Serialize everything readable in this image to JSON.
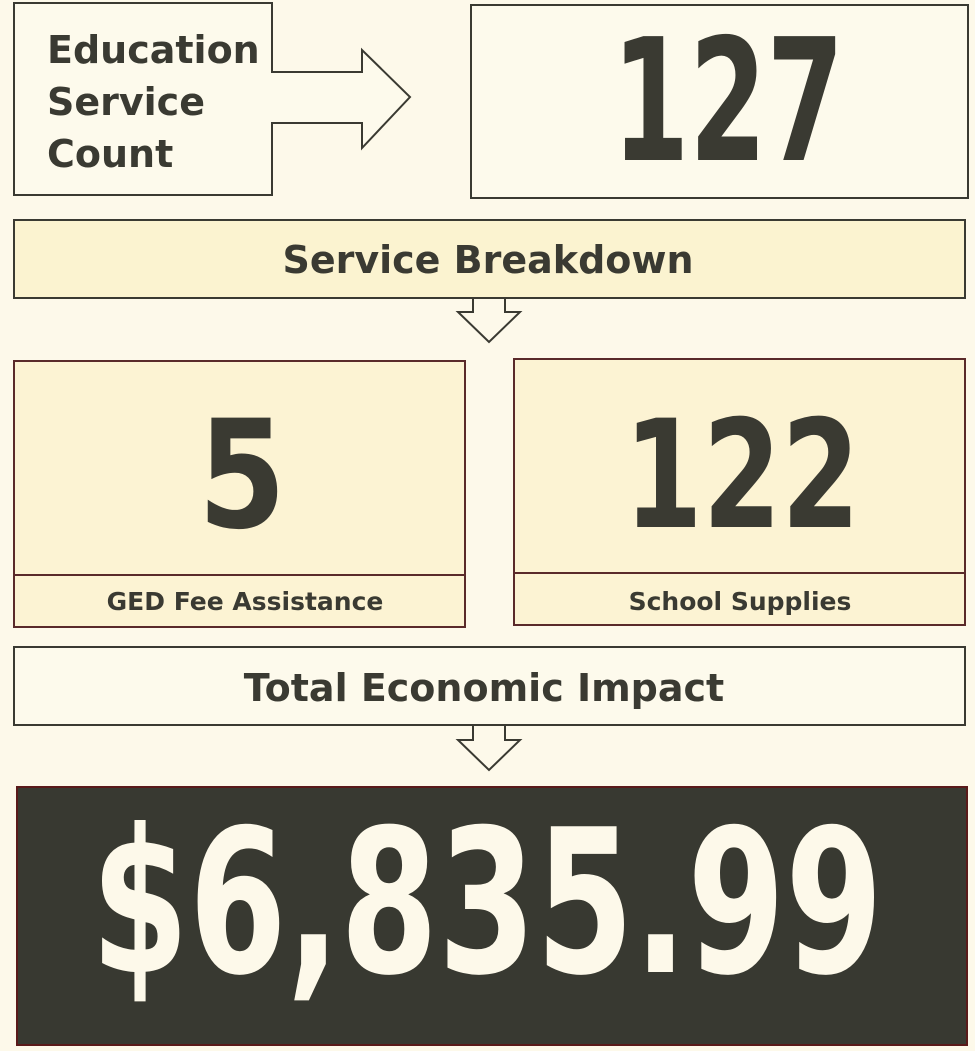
{
  "header": {
    "label": "Education Service Count",
    "label_lines": [
      "Education",
      "Service",
      "Count"
    ],
    "count": "127"
  },
  "breakdown": {
    "title": "Service Breakdown",
    "items": [
      {
        "value": "5",
        "label": "GED Fee Assistance"
      },
      {
        "value": "122",
        "label": "School Supplies"
      }
    ]
  },
  "total": {
    "title": "Total Economic Impact",
    "value": "$6,835.99"
  }
}
